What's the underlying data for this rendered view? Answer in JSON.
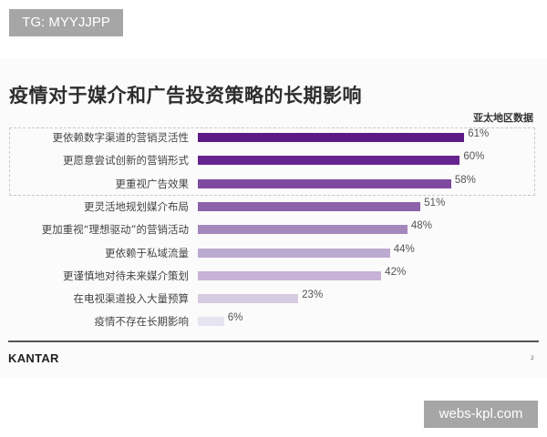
{
  "watermark_top": "TG: MYYJJPP",
  "watermark_bottom": "webs-kpl.com",
  "footer": {
    "logo": "KANTAR",
    "page_number": "2"
  },
  "chart_data": {
    "type": "bar",
    "orientation": "horizontal",
    "title": "疫情对于媒介和广告投资策略的长期影响",
    "subtitle": "亚太地区数据",
    "xlabel": "",
    "ylabel": "",
    "xlim": [
      0,
      100
    ],
    "grid": false,
    "legend": "none",
    "unit": "%",
    "categories": [
      "更依赖数字渠道的营销灵活性",
      "更愿意尝试创新的营销形式",
      "更重视广告效果",
      "更灵活地规划媒介布局",
      "更加重视“理想驱动”的营销活动",
      "更依赖于私域流量",
      "更谨慎地对待未来媒介策划",
      "在电视渠道投入大量预算",
      "疫情不存在长期影响"
    ],
    "values": [
      61,
      60,
      58,
      51,
      48,
      44,
      42,
      23,
      6
    ],
    "value_labels": [
      "61%",
      "60%",
      "58%",
      "51%",
      "48%",
      "44%",
      "42%",
      "23%",
      "6%"
    ],
    "colors": [
      "#5c1a86",
      "#66258e",
      "#7d4a9f",
      "#8e62aa",
      "#a487bd",
      "#bcaad0",
      "#c8b2d5",
      "#d6cbe1",
      "#e8e3f0"
    ],
    "annotations": [
      "Top 3 items enclosed in dashed box"
    ]
  }
}
